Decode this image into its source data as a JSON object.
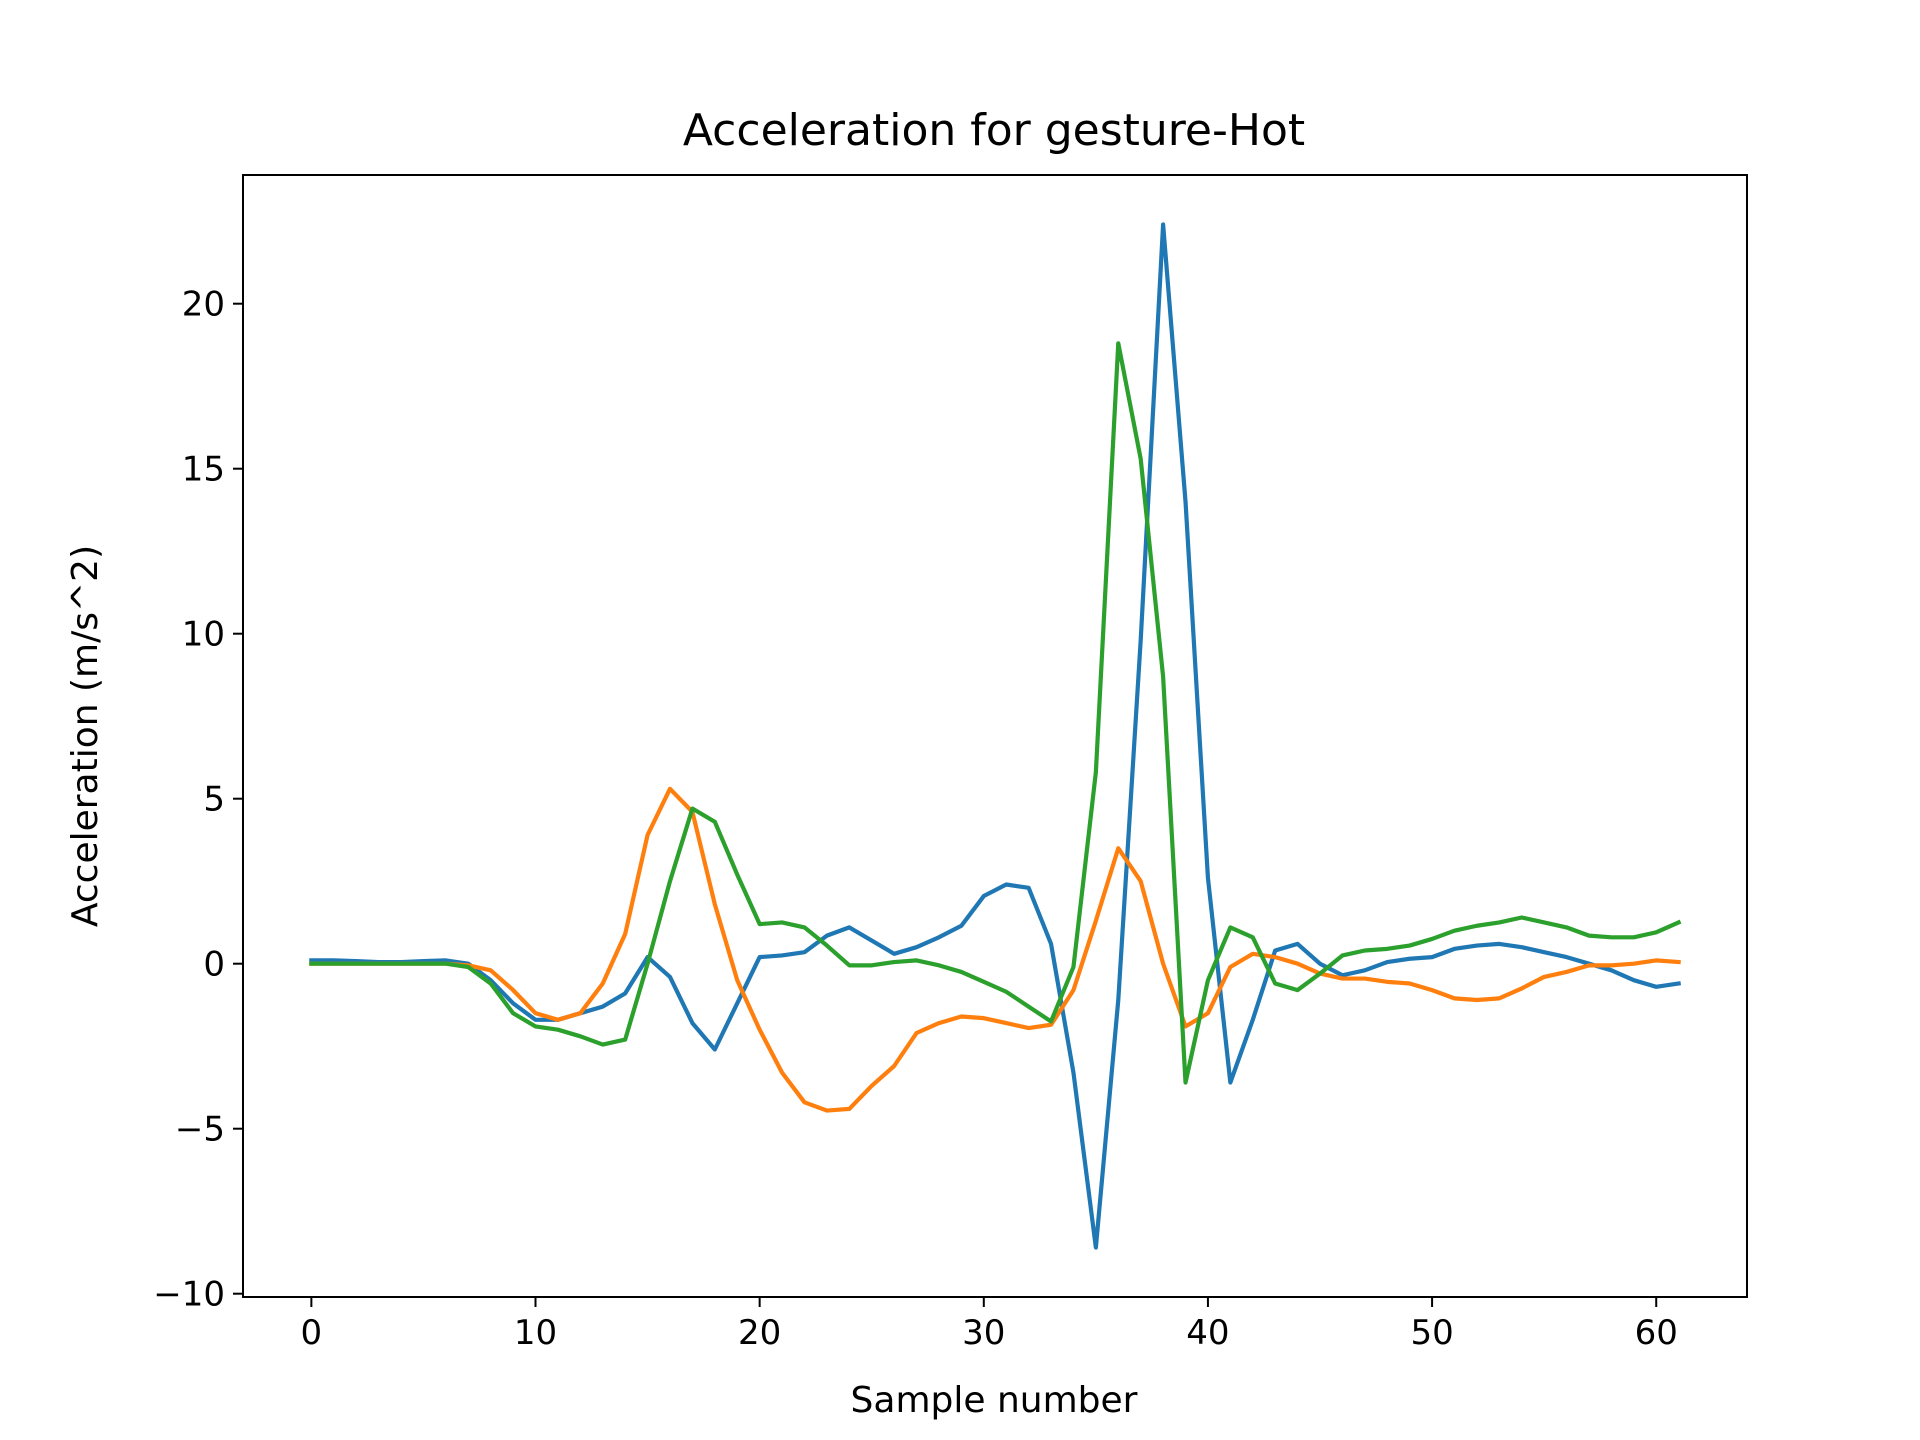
{
  "chart_data": {
    "type": "line",
    "title": "Acceleration for gesture-Hot",
    "xlabel": "Sample number",
    "ylabel": "Acceleration (m/s^2)",
    "xlim": [
      -3.05,
      64.05
    ],
    "ylim": [
      -10.1,
      23.9
    ],
    "xticks": [
      0,
      10,
      20,
      30,
      40,
      50,
      60
    ],
    "yticks": [
      -10,
      -5,
      0,
      5,
      10,
      15,
      20
    ],
    "grid": false,
    "legend": "none",
    "series": [
      {
        "color": "#1f77b4",
        "values": [
          0.1,
          0.1,
          0.08,
          0.05,
          0.05,
          0.08,
          0.1,
          0.0,
          -0.5,
          -1.2,
          -1.7,
          -1.7,
          -1.5,
          -1.3,
          -0.9,
          0.2,
          -0.4,
          -1.8,
          -2.6,
          -1.2,
          0.2,
          0.25,
          0.35,
          0.85,
          1.1,
          0.7,
          0.3,
          0.5,
          0.8,
          1.15,
          2.05,
          2.4,
          2.3,
          0.6,
          -3.3,
          -8.6,
          -1.1,
          9.8,
          22.4,
          14.0,
          2.6,
          -3.6,
          -1.7,
          0.4,
          0.6,
          0.0,
          -0.35,
          -0.2,
          0.05,
          0.15,
          0.2,
          0.45,
          0.55,
          0.6,
          0.5,
          0.35,
          0.2,
          0.0,
          -0.2,
          -0.5,
          -0.7,
          -0.6
        ]
      },
      {
        "color": "#ff7f0e",
        "values": [
          0.0,
          0.0,
          0.0,
          0.0,
          0.0,
          0.0,
          0.0,
          -0.05,
          -0.2,
          -0.8,
          -1.5,
          -1.7,
          -1.5,
          -0.6,
          0.9,
          3.9,
          5.3,
          4.6,
          1.8,
          -0.5,
          -2.0,
          -3.3,
          -4.2,
          -4.45,
          -4.4,
          -3.7,
          -3.1,
          -2.1,
          -1.8,
          -1.6,
          -1.65,
          -1.8,
          -1.95,
          -1.85,
          -0.8,
          1.3,
          3.5,
          2.5,
          0.0,
          -1.9,
          -1.5,
          -0.1,
          0.3,
          0.2,
          0.0,
          -0.3,
          -0.45,
          -0.45,
          -0.55,
          -0.6,
          -0.8,
          -1.05,
          -1.1,
          -1.05,
          -0.75,
          -0.4,
          -0.25,
          -0.05,
          -0.05,
          0.0,
          0.1,
          0.05
        ]
      },
      {
        "color": "#2ca02c",
        "values": [
          0.0,
          0.0,
          0.0,
          0.0,
          0.0,
          0.0,
          0.0,
          -0.1,
          -0.6,
          -1.5,
          -1.9,
          -2.0,
          -2.2,
          -2.45,
          -2.3,
          0.0,
          2.5,
          4.7,
          4.3,
          2.7,
          1.2,
          1.25,
          1.1,
          0.55,
          -0.05,
          -0.05,
          0.05,
          0.1,
          -0.05,
          -0.25,
          -0.55,
          -0.85,
          -1.3,
          -1.75,
          -0.1,
          5.8,
          18.8,
          15.3,
          8.7,
          -3.6,
          -0.5,
          1.1,
          0.8,
          -0.6,
          -0.8,
          -0.3,
          0.25,
          0.4,
          0.45,
          0.55,
          0.75,
          1.0,
          1.15,
          1.25,
          1.4,
          1.25,
          1.1,
          0.85,
          0.8,
          0.8,
          0.95,
          1.25
        ]
      }
    ]
  }
}
